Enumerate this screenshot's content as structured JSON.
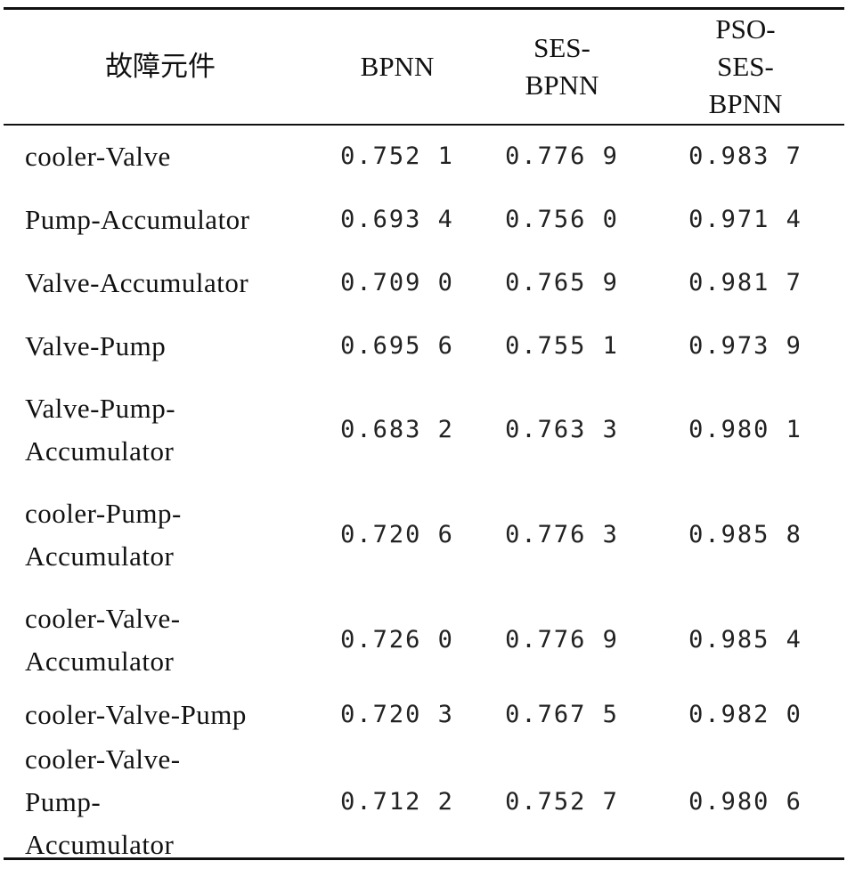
{
  "table": {
    "header": [
      "故障元件",
      "BPNN",
      "SES-BPNN",
      "PSO-SES-BPNN"
    ],
    "rows": [
      [
        "cooler-Valve",
        "0.752 1",
        "0.776 9",
        "0.983 7"
      ],
      [
        "Pump-Accumulator",
        "0.693 4",
        "0.756 0",
        "0.971 4"
      ],
      [
        "Valve-Accumulator",
        "0.709 0",
        "0.765 9",
        "0.981 7"
      ],
      [
        "Valve-Pump",
        "0.695 6",
        "0.755 1",
        "0.973 9"
      ],
      [
        "Valve-Pump-Accumulator",
        "0.683 2",
        "0.763 3",
        "0.980 1"
      ],
      [
        "cooler-Pump-Accumulator",
        "0.720 6",
        "0.776 3",
        "0.985 8"
      ],
      [
        "cooler-Valve-Accumulator",
        "0.726 0",
        "0.776 9",
        "0.985 4"
      ],
      [
        "cooler-Valve-Pump",
        "0.720 3",
        "0.767 5",
        "0.982 0"
      ],
      [
        "cooler-Valve-Pump-Accumulator",
        "0.712 2",
        "0.752 7",
        "0.980 6"
      ]
    ]
  }
}
